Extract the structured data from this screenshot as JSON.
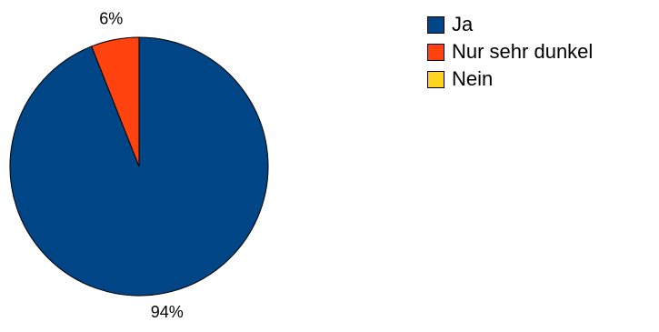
{
  "chart_data": {
    "type": "pie",
    "categories": [
      "Ja",
      "Nur sehr dunkel",
      "Nein"
    ],
    "values": [
      94,
      6,
      0
    ],
    "data_labels": [
      "94%",
      "6%",
      ""
    ],
    "colors": [
      "#004586",
      "#ff420e",
      "#ffd320"
    ],
    "legend_position": "right",
    "start_angle_deg": 0,
    "direction": "clockwise"
  }
}
